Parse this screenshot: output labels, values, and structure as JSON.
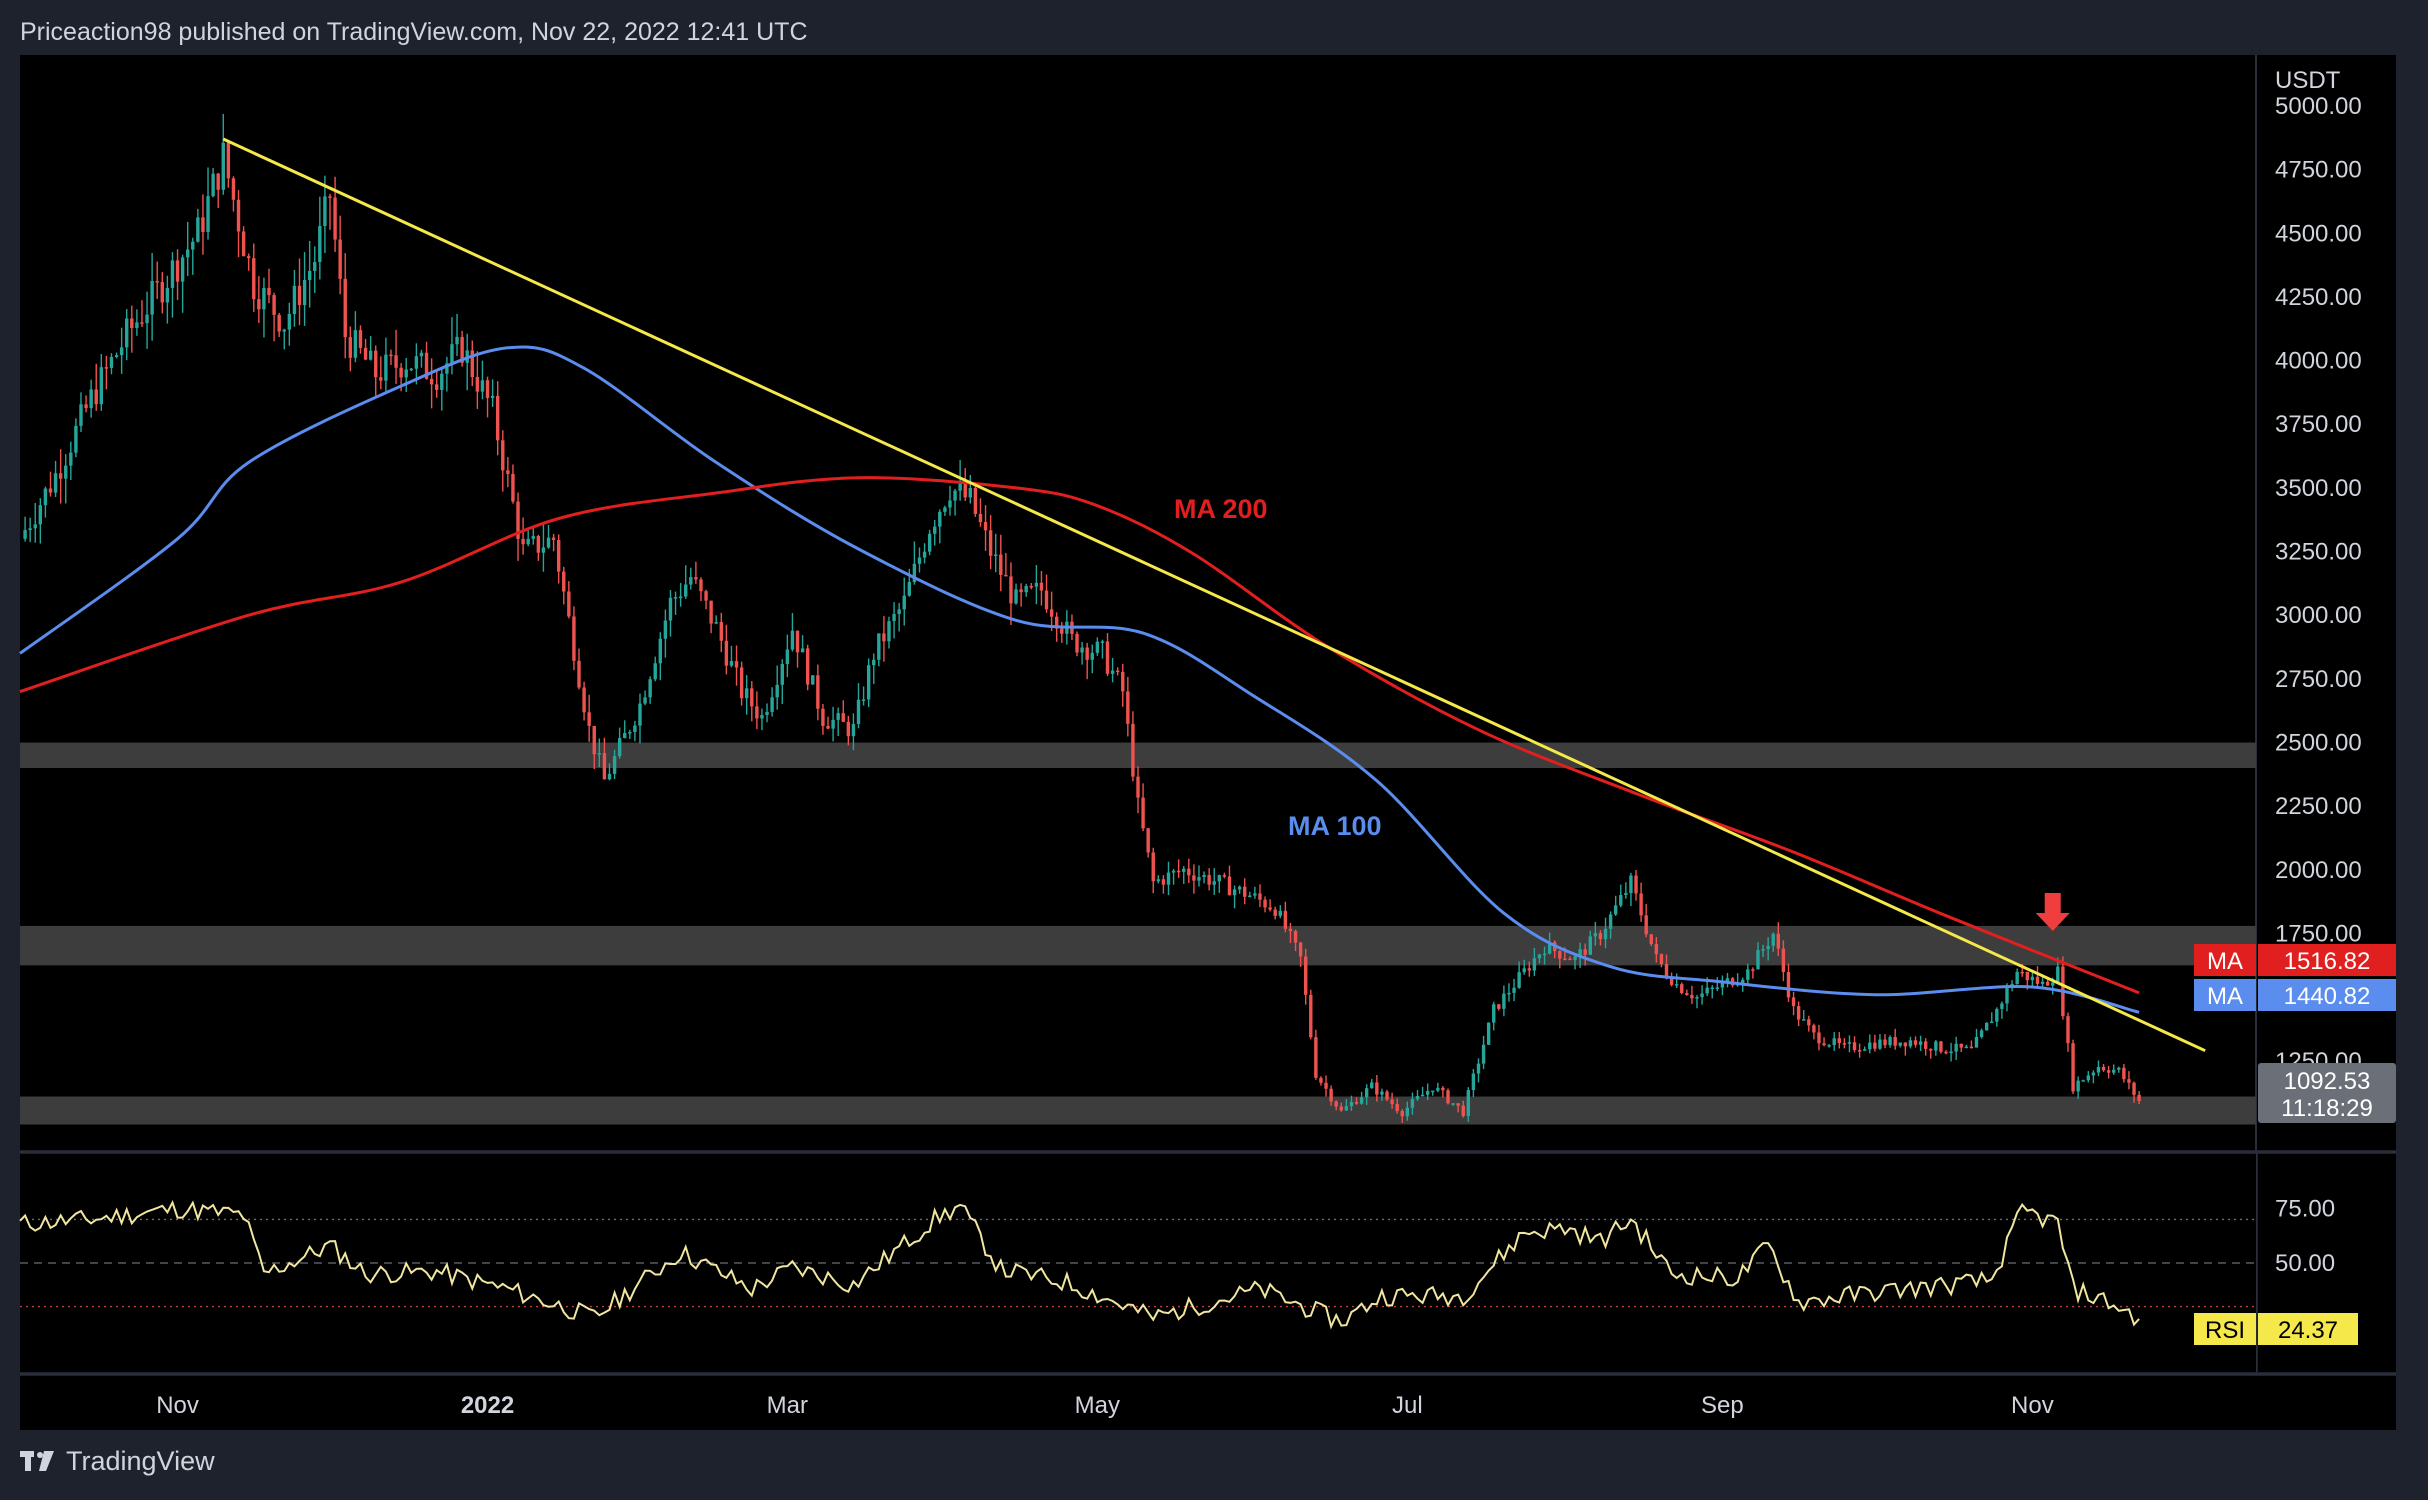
{
  "header": {
    "text": "Priceaction98 published on TradingView.com, Nov 22, 2022 12:41 UTC"
  },
  "footer": {
    "brand": "TradingView"
  },
  "price_axis": {
    "currency": "USDT",
    "ticks": [
      "5000.00",
      "4750.00",
      "4500.00",
      "4250.00",
      "4000.00",
      "3750.00",
      "3500.00",
      "3250.00",
      "3000.00",
      "2750.00",
      "2500.00",
      "2250.00",
      "2000.00",
      "1750.00",
      "1250.00"
    ]
  },
  "time_axis": {
    "labels": [
      "Nov",
      "2022",
      "Mar",
      "May",
      "Jul",
      "Sep",
      "Nov"
    ]
  },
  "labels": {
    "ma200_tag": "MA",
    "ma200_value": "1516.82",
    "ma100_tag": "MA",
    "ma100_value": "1440.82",
    "last_price": "1092.53",
    "countdown": "11:18:29",
    "rsi_tag": "RSI",
    "rsi_value": "24.37"
  },
  "annotations": {
    "ma200": "MA 200",
    "ma100": "MA 100"
  },
  "rsi_axis": {
    "ticks": [
      "75.00",
      "50.00"
    ]
  },
  "colors": {
    "background": "#000000",
    "up": "#26a69a",
    "down": "#ef5350",
    "ma200": "#e21f1f",
    "ma100": "#5b8def",
    "trendline": "#f5e84a",
    "zone": "#3d3d3d",
    "rsi": "#f0e6a0",
    "arrow": "#f03e3e"
  },
  "chart_data": {
    "type": "candlestick",
    "symbol_quote": "USDT",
    "y_range": [
      900,
      5200
    ],
    "x_range": [
      "2021-10-01",
      "2022-12-15"
    ],
    "time_ticks": [
      {
        "label": "Nov",
        "date": "2021-11-01"
      },
      {
        "label": "2022",
        "date": "2022-01-01"
      },
      {
        "label": "Mar",
        "date": "2022-03-01"
      },
      {
        "label": "May",
        "date": "2022-05-01"
      },
      {
        "label": "Jul",
        "date": "2022-07-01"
      },
      {
        "label": "Sep",
        "date": "2022-09-01"
      },
      {
        "label": "Nov",
        "date": "2022-11-01"
      }
    ],
    "price_path": [
      {
        "date": "2021-10-01",
        "close": 3300
      },
      {
        "date": "2021-10-08",
        "close": 3550
      },
      {
        "date": "2021-10-15",
        "close": 3850
      },
      {
        "date": "2021-10-22",
        "close": 4100
      },
      {
        "date": "2021-10-29",
        "close": 4300
      },
      {
        "date": "2021-11-05",
        "close": 4500
      },
      {
        "date": "2021-11-10",
        "close": 4800
      },
      {
        "date": "2021-11-16",
        "close": 4300
      },
      {
        "date": "2021-11-22",
        "close": 4150
      },
      {
        "date": "2021-11-28",
        "close": 4400
      },
      {
        "date": "2021-12-01",
        "close": 4650
      },
      {
        "date": "2021-12-04",
        "close": 4100
      },
      {
        "date": "2021-12-10",
        "close": 3950
      },
      {
        "date": "2021-12-16",
        "close": 4000
      },
      {
        "date": "2021-12-22",
        "close": 3950
      },
      {
        "date": "2021-12-27",
        "close": 4050
      },
      {
        "date": "2022-01-02",
        "close": 3800
      },
      {
        "date": "2022-01-08",
        "close": 3250
      },
      {
        "date": "2022-01-14",
        "close": 3300
      },
      {
        "date": "2022-01-21",
        "close": 2550
      },
      {
        "date": "2022-01-24",
        "close": 2350
      },
      {
        "date": "2022-01-31",
        "close": 2650
      },
      {
        "date": "2022-02-06",
        "close": 3050
      },
      {
        "date": "2022-02-10",
        "close": 3150
      },
      {
        "date": "2022-02-15",
        "close": 2950
      },
      {
        "date": "2022-02-20",
        "close": 2700
      },
      {
        "date": "2022-02-24",
        "close": 2600
      },
      {
        "date": "2022-03-02",
        "close": 2950
      },
      {
        "date": "2022-03-08",
        "close": 2600
      },
      {
        "date": "2022-03-14",
        "close": 2550
      },
      {
        "date": "2022-03-18",
        "close": 2850
      },
      {
        "date": "2022-03-24",
        "close": 3050
      },
      {
        "date": "2022-03-29",
        "close": 3350
      },
      {
        "date": "2022-04-02",
        "close": 3500
      },
      {
        "date": "2022-04-06",
        "close": 3450
      },
      {
        "date": "2022-04-10",
        "close": 3250
      },
      {
        "date": "2022-04-15",
        "close": 3050
      },
      {
        "date": "2022-04-20",
        "close": 3100
      },
      {
        "date": "2022-04-26",
        "close": 2900
      },
      {
        "date": "2022-05-02",
        "close": 2850
      },
      {
        "date": "2022-05-06",
        "close": 2700
      },
      {
        "date": "2022-05-09",
        "close": 2250
      },
      {
        "date": "2022-05-12",
        "close": 1950
      },
      {
        "date": "2022-05-18",
        "close": 2000
      },
      {
        "date": "2022-05-25",
        "close": 1950
      },
      {
        "date": "2022-05-31",
        "close": 1900
      },
      {
        "date": "2022-06-05",
        "close": 1850
      },
      {
        "date": "2022-06-10",
        "close": 1650
      },
      {
        "date": "2022-06-13",
        "close": 1200
      },
      {
        "date": "2022-06-18",
        "close": 1050
      },
      {
        "date": "2022-06-24",
        "close": 1150
      },
      {
        "date": "2022-06-30",
        "close": 1050
      },
      {
        "date": "2022-07-06",
        "close": 1150
      },
      {
        "date": "2022-07-12",
        "close": 1050
      },
      {
        "date": "2022-07-18",
        "close": 1450
      },
      {
        "date": "2022-07-24",
        "close": 1600
      },
      {
        "date": "2022-07-28",
        "close": 1700
      },
      {
        "date": "2022-08-03",
        "close": 1650
      },
      {
        "date": "2022-08-08",
        "close": 1750
      },
      {
        "date": "2022-08-14",
        "close": 1950
      },
      {
        "date": "2022-08-19",
        "close": 1650
      },
      {
        "date": "2022-08-23",
        "close": 1550
      },
      {
        "date": "2022-08-27",
        "close": 1500
      },
      {
        "date": "2022-09-01",
        "close": 1550
      },
      {
        "date": "2022-09-06",
        "close": 1600
      },
      {
        "date": "2022-09-11",
        "close": 1750
      },
      {
        "date": "2022-09-15",
        "close": 1450
      },
      {
        "date": "2022-09-19",
        "close": 1350
      },
      {
        "date": "2022-09-25",
        "close": 1300
      },
      {
        "date": "2022-10-01",
        "close": 1320
      },
      {
        "date": "2022-10-08",
        "close": 1330
      },
      {
        "date": "2022-10-14",
        "close": 1300
      },
      {
        "date": "2022-10-20",
        "close": 1290
      },
      {
        "date": "2022-10-25",
        "close": 1450
      },
      {
        "date": "2022-10-29",
        "close": 1600
      },
      {
        "date": "2022-11-03",
        "close": 1550
      },
      {
        "date": "2022-11-06",
        "close": 1600
      },
      {
        "date": "2022-11-09",
        "close": 1150
      },
      {
        "date": "2022-11-14",
        "close": 1230
      },
      {
        "date": "2022-11-18",
        "close": 1210
      },
      {
        "date": "2022-11-22",
        "close": 1092.53
      }
    ],
    "ma200": [
      {
        "date": "2021-10-01",
        "value": 2700
      },
      {
        "date": "2021-11-15",
        "value": 3000
      },
      {
        "date": "2021-12-15",
        "value": 3130
      },
      {
        "date": "2022-01-15",
        "value": 3380
      },
      {
        "date": "2022-02-15",
        "value": 3480
      },
      {
        "date": "2022-03-15",
        "value": 3540
      },
      {
        "date": "2022-04-15",
        "value": 3500
      },
      {
        "date": "2022-05-01",
        "value": 3430
      },
      {
        "date": "2022-05-20",
        "value": 3240
      },
      {
        "date": "2022-06-15",
        "value": 2880
      },
      {
        "date": "2022-07-15",
        "value": 2550
      },
      {
        "date": "2022-08-15",
        "value": 2300
      },
      {
        "date": "2022-09-15",
        "value": 2070
      },
      {
        "date": "2022-10-15",
        "value": 1820
      },
      {
        "date": "2022-11-22",
        "value": 1516.82
      }
    ],
    "ma100": [
      {
        "date": "2021-10-01",
        "value": 2850
      },
      {
        "date": "2021-11-01",
        "value": 3300
      },
      {
        "date": "2021-11-15",
        "value": 3600
      },
      {
        "date": "2021-12-15",
        "value": 3900
      },
      {
        "date": "2022-01-05",
        "value": 4050
      },
      {
        "date": "2022-01-20",
        "value": 3970
      },
      {
        "date": "2022-02-15",
        "value": 3600
      },
      {
        "date": "2022-03-15",
        "value": 3260
      },
      {
        "date": "2022-04-15",
        "value": 2980
      },
      {
        "date": "2022-05-10",
        "value": 2930
      },
      {
        "date": "2022-06-01",
        "value": 2680
      },
      {
        "date": "2022-06-25",
        "value": 2350
      },
      {
        "date": "2022-07-20",
        "value": 1830
      },
      {
        "date": "2022-08-10",
        "value": 1620
      },
      {
        "date": "2022-09-01",
        "value": 1560
      },
      {
        "date": "2022-10-01",
        "value": 1510
      },
      {
        "date": "2022-11-01",
        "value": 1540
      },
      {
        "date": "2022-11-22",
        "value": 1440.82
      }
    ],
    "trendline": [
      {
        "date": "2021-11-10",
        "value": 4870
      },
      {
        "date": "2022-12-05",
        "value": 1290
      }
    ],
    "zones": [
      {
        "low": 2400,
        "high": 2500
      },
      {
        "low": 1625,
        "high": 1780
      },
      {
        "low": 1000,
        "high": 1110
      }
    ],
    "arrow_marker": {
      "date": "2022-11-05",
      "price": 1760
    },
    "rsi": {
      "range": [
        0,
        100
      ],
      "levels": [
        70,
        50,
        30
      ],
      "ticks": [
        75,
        50
      ],
      "last": 24.37,
      "path": [
        {
          "date": "2021-10-01",
          "value": 68
        },
        {
          "date": "2021-10-15",
          "value": 70
        },
        {
          "date": "2021-11-01",
          "value": 75
        },
        {
          "date": "2021-11-14",
          "value": 72
        },
        {
          "date": "2021-11-18",
          "value": 45
        },
        {
          "date": "2021-12-01",
          "value": 58
        },
        {
          "date": "2021-12-08",
          "value": 45
        },
        {
          "date": "2021-12-22",
          "value": 46
        },
        {
          "date": "2022-01-05",
          "value": 38
        },
        {
          "date": "2022-01-22",
          "value": 25
        },
        {
          "date": "2022-02-08",
          "value": 55
        },
        {
          "date": "2022-02-22",
          "value": 38
        },
        {
          "date": "2022-03-02",
          "value": 48
        },
        {
          "date": "2022-03-14",
          "value": 40
        },
        {
          "date": "2022-03-30",
          "value": 70
        },
        {
          "date": "2022-04-04",
          "value": 76
        },
        {
          "date": "2022-04-12",
          "value": 47
        },
        {
          "date": "2022-04-25",
          "value": 41
        },
        {
          "date": "2022-05-12",
          "value": 25
        },
        {
          "date": "2022-05-20",
          "value": 30
        },
        {
          "date": "2022-06-02",
          "value": 38
        },
        {
          "date": "2022-06-18",
          "value": 23
        },
        {
          "date": "2022-06-26",
          "value": 35
        },
        {
          "date": "2022-07-12",
          "value": 35
        },
        {
          "date": "2022-07-24",
          "value": 64
        },
        {
          "date": "2022-08-01",
          "value": 66
        },
        {
          "date": "2022-08-08",
          "value": 60
        },
        {
          "date": "2022-08-14",
          "value": 70
        },
        {
          "date": "2022-08-22",
          "value": 45
        },
        {
          "date": "2022-09-04",
          "value": 43
        },
        {
          "date": "2022-09-10",
          "value": 58
        },
        {
          "date": "2022-09-16",
          "value": 32
        },
        {
          "date": "2022-10-02",
          "value": 37
        },
        {
          "date": "2022-10-16",
          "value": 40
        },
        {
          "date": "2022-10-24",
          "value": 42
        },
        {
          "date": "2022-10-30",
          "value": 74
        },
        {
          "date": "2022-11-06",
          "value": 68
        },
        {
          "date": "2022-11-09",
          "value": 38
        },
        {
          "date": "2022-11-16",
          "value": 32
        },
        {
          "date": "2022-11-22",
          "value": 24.37
        }
      ]
    }
  }
}
